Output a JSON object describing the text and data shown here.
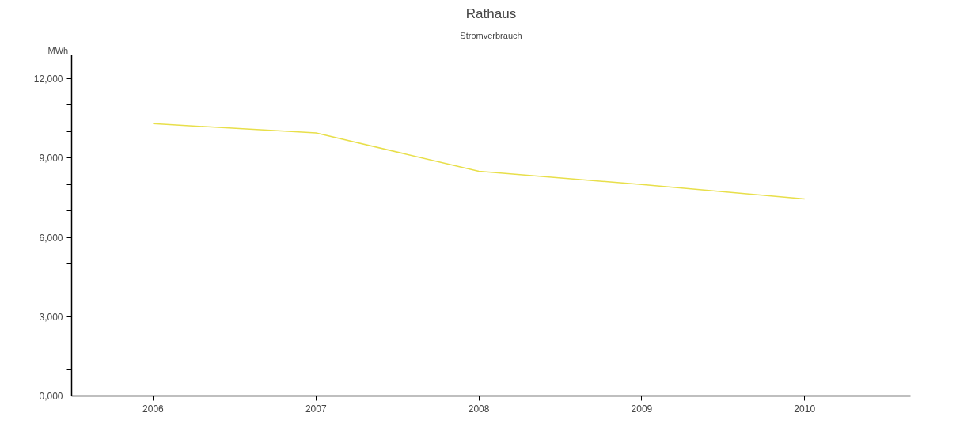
{
  "chart_data": {
    "type": "line",
    "title": "Rathaus",
    "subtitle": "Stromverbrauch",
    "ylabel": "MWh",
    "x": [
      2006,
      2007,
      2008,
      2009,
      2010
    ],
    "series": [
      {
        "color": "#e8df4a",
        "values": [
          10300,
          9950,
          8500,
          8000,
          7450
        ]
      }
    ],
    "xlim": [
      2005.5,
      2010.65
    ],
    "xticks": [
      2006,
      2007,
      2008,
      2009,
      2010
    ],
    "ylim": [
      0,
      12900
    ],
    "yticks": [
      {
        "value": 0,
        "label": "0,000"
      },
      {
        "value": 1000,
        "label": null
      },
      {
        "value": 2000,
        "label": null
      },
      {
        "value": 3000,
        "label": "3,000"
      },
      {
        "value": 4000,
        "label": null
      },
      {
        "value": 5000,
        "label": null
      },
      {
        "value": 6000,
        "label": "6,000"
      },
      {
        "value": 7000,
        "label": null
      },
      {
        "value": 8000,
        "label": null
      },
      {
        "value": 9000,
        "label": "9,000"
      },
      {
        "value": 10000,
        "label": null
      },
      {
        "value": 11000,
        "label": null
      },
      {
        "value": 12000,
        "label": "12,000"
      }
    ],
    "grid": false,
    "marker": "none",
    "line_style": "solid"
  }
}
